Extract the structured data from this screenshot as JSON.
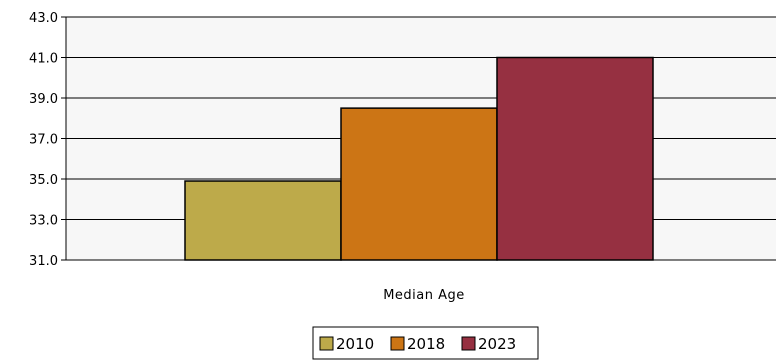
{
  "chart_data": {
    "type": "bar",
    "categories": [
      "Median Age"
    ],
    "series": [
      {
        "name": "2010",
        "values": [
          34.9
        ],
        "color": "#BDAA4A"
      },
      {
        "name": "2018",
        "values": [
          38.5
        ],
        "color": "#CC7515"
      },
      {
        "name": "2023",
        "values": [
          41.0
        ],
        "color": "#963041"
      }
    ],
    "y_ticks": [
      "43.0",
      "41.0",
      "39.0",
      "37.0",
      "35.0",
      "33.0",
      "31.0"
    ],
    "ylim": [
      31,
      43
    ],
    "grid": true,
    "legend_position": "bottom",
    "plot_background": "#F7F7F7",
    "title": "",
    "xlabel": "",
    "ylabel": ""
  }
}
